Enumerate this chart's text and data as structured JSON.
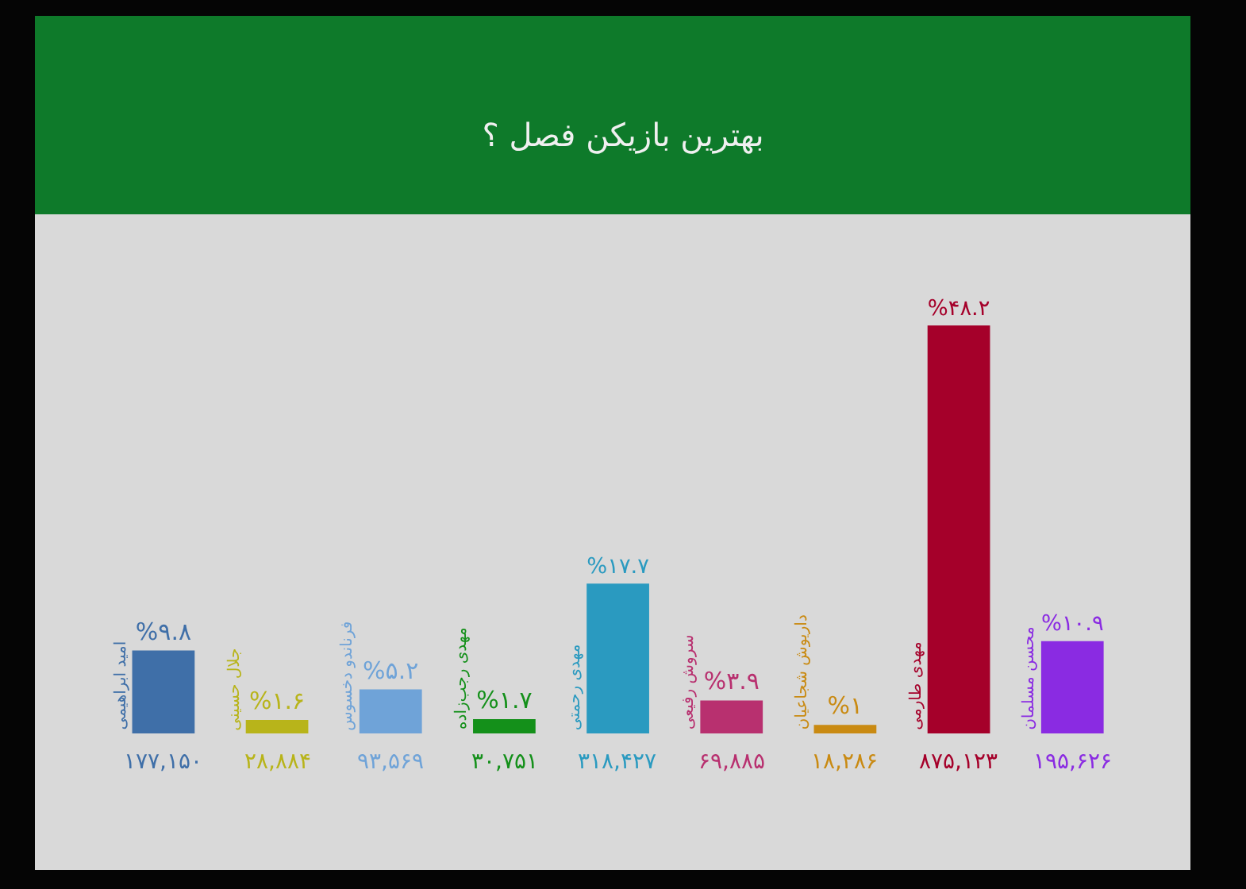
{
  "chart_data": {
    "type": "bar",
    "title": "بهترین بازیکن فصل ؟",
    "categories": [
      "امید ابراهیمی",
      "جلال حسینی",
      "فرناندو دخسوس",
      "مهدی رجب‌زاده",
      "مهدی رحمتی",
      "سروش رفیعی",
      "داریوش شجاعیان",
      "مهدی طارمی",
      "محسن مسلمان"
    ],
    "values": [
      9.8,
      1.6,
      5.2,
      1.7,
      17.7,
      3.9,
      1,
      48.2,
      10.9
    ],
    "colors": [
      "#3f6fa8",
      "#b8b41a",
      "#6fa3d8",
      "#14901a",
      "#2a9ac0",
      "#b8306f",
      "#c98a12",
      "#a5002a",
      "#8a2be2"
    ],
    "value_labels": [
      "%۹.۸",
      "%۱.۶",
      "%۵.۲",
      "%۱.۷",
      "%۱۷.۷",
      "%۳.۹",
      "%۱",
      "%۴۸.۲",
      "%۱۰.۹"
    ],
    "annotations": [
      "۱۷۷,۱۵۰",
      "۲۸,۸۸۴",
      "۹۳,۵۶۹",
      "۳۰,۷۵۱",
      "۳۱۸,۴۲۷",
      "۶۹,۸۸۵",
      "۱۸,۲۸۶",
      "۸۷۵,۱۲۳",
      "۱۹۵,۶۲۶"
    ],
    "grid": false
  }
}
